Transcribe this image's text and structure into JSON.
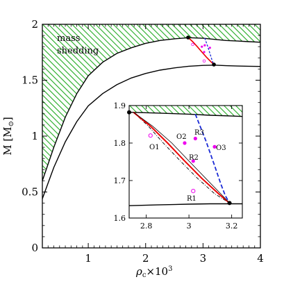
{
  "chart_data": [
    {
      "type": "line",
      "panel": "main",
      "xlabel_base": "ρ",
      "xlabel_sub": "c",
      "xlabel_suffix": "×10",
      "xlabel_sup": "3",
      "ylabel_main": "M  [M",
      "ylabel_sub": "⊙",
      "ylabel_close": "]",
      "xlim": [
        0.2,
        4.0
      ],
      "ylim": [
        0,
        2
      ],
      "xticks": [
        "1",
        "2",
        "3",
        "4"
      ],
      "yticks": [
        "0",
        "0.5",
        "1",
        "1.5",
        "2"
      ],
      "annotation": [
        "mass",
        "shedding"
      ],
      "colors": {
        "shedding_fill": "#22aa22",
        "red": "#ee0000",
        "blue": "#1a2ad6",
        "magenta": "#ee00ee"
      },
      "series": [
        {
          "x": [
            0.2,
            0.4,
            0.6,
            0.8,
            1.0,
            1.25,
            1.5,
            1.75,
            2.0,
            2.25,
            2.5,
            2.75,
            3.0,
            3.2,
            3.4,
            3.6,
            3.8,
            4.0
          ],
          "y": [
            0.6,
            0.9,
            1.17,
            1.38,
            1.54,
            1.66,
            1.74,
            1.79,
            1.83,
            1.855,
            1.87,
            1.88,
            1.875,
            1.865,
            1.855,
            1.85,
            1.845,
            1.84
          ]
        },
        {
          "x": [
            0.2,
            0.4,
            0.6,
            0.8,
            1.0,
            1.25,
            1.5,
            1.75,
            2.0,
            2.25,
            2.5,
            2.75,
            3.0,
            3.2,
            3.4,
            3.6,
            3.8,
            4.0
          ],
          "y": [
            0.44,
            0.72,
            0.95,
            1.13,
            1.27,
            1.38,
            1.46,
            1.52,
            1.56,
            1.59,
            1.61,
            1.625,
            1.632,
            1.635,
            1.63,
            1.627,
            1.625,
            1.623
          ]
        }
      ],
      "points": {
        "filled": [
          [
            2.74,
            1.882
          ],
          [
            3.19,
            1.64
          ]
        ]
      }
    },
    {
      "type": "line",
      "panel": "inset",
      "xlim": [
        2.72,
        3.25
      ],
      "ylim": [
        1.6,
        1.9
      ],
      "xticks": [
        "2.8",
        "3",
        "3.2"
      ],
      "yticks": [
        "1.6",
        "1.7",
        "1.8",
        "1.9"
      ],
      "series": [
        {
          "x": [
            2.72,
            2.85,
            3.0,
            3.1,
            3.2,
            3.25
          ],
          "y": [
            1.882,
            1.88,
            1.877,
            1.874,
            1.872,
            1.871
          ]
        },
        {
          "x": [
            2.72,
            2.85,
            3.0,
            3.1,
            3.2,
            3.25
          ],
          "y": [
            1.633,
            1.635,
            1.637,
            1.638,
            1.638,
            1.638
          ]
        },
        {
          "x": [
            2.74,
            2.82,
            2.9,
            2.98,
            3.06,
            3.14,
            3.19
          ],
          "y": [
            1.882,
            1.845,
            1.8,
            1.752,
            1.706,
            1.664,
            1.64
          ]
        },
        {
          "x": [
            2.74,
            2.83,
            2.92,
            3.0,
            3.08,
            3.15,
            3.19
          ],
          "y": [
            1.882,
            1.845,
            1.8,
            1.752,
            1.705,
            1.664,
            1.64
          ]
        },
        {
          "x": [
            2.74,
            2.81,
            2.88,
            2.96,
            3.04,
            3.12,
            3.19
          ],
          "y": [
            1.882,
            1.845,
            1.8,
            1.752,
            1.706,
            1.665,
            1.64
          ]
        },
        {
          "x": [
            3.03,
            3.08,
            3.12,
            3.15,
            3.17,
            3.19
          ],
          "y": [
            1.877,
            1.805,
            1.74,
            1.69,
            1.66,
            1.64
          ]
        }
      ],
      "points": {
        "filled": [
          [
            2.72,
            1.882
          ],
          [
            3.19,
            1.64
          ]
        ],
        "magenta_filled": [
          [
            2.98,
            1.8
          ],
          [
            3.03,
            1.812
          ],
          [
            3.12,
            1.79
          ],
          [
            3.02,
            1.752
          ]
        ],
        "magenta_open": [
          [
            2.82,
            1.82
          ],
          [
            3.02,
            1.672
          ]
        ]
      },
      "labels": [
        "O1",
        "O2",
        "R3",
        "O3",
        "R2",
        "R1"
      ]
    }
  ]
}
